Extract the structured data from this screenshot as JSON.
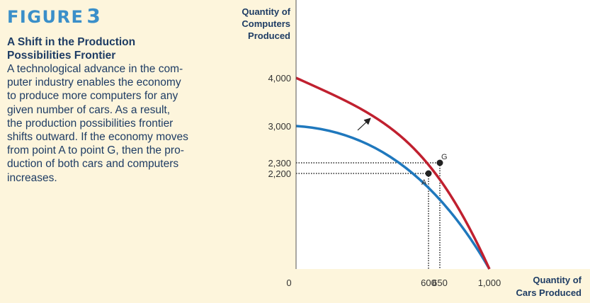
{
  "caption": {
    "figure_word": "FIGURE",
    "figure_number": "3",
    "title_lines": [
      "A Shift in the Production",
      "Possibilities Frontier"
    ],
    "body_lines": [
      "A technological advance in the com-",
      "puter industry enables the economy",
      "to produce more computers for any",
      "given number of cars. As a result,",
      "the production possibilities frontier",
      "shifts outward. If the economy moves",
      "from point A to point G, then the pro-",
      "duction of both cars and computers",
      "increases."
    ]
  },
  "chart_data": {
    "type": "line",
    "ylabel_lines": [
      "Quantity of",
      "Computers",
      "Produced"
    ],
    "xlabel_lines": [
      "Quantity of",
      "Cars Produced"
    ],
    "origin_label": "0",
    "y_ticks": [
      {
        "value": 4000,
        "label": "4,000"
      },
      {
        "value": 3000,
        "label": "3,000"
      },
      {
        "value": 2300,
        "label": "2,300"
      },
      {
        "value": 2200,
        "label": "2,200"
      }
    ],
    "x_ticks": [
      {
        "value": 600,
        "label": "600"
      },
      {
        "value": 650,
        "label": "650"
      },
      {
        "value": 1000,
        "label": "1,000"
      }
    ],
    "series": [
      {
        "key": "old",
        "color": "#1f78bd",
        "y_intercept": 3000,
        "x_intercept": 1000
      },
      {
        "key": "new",
        "color": "#c0202f",
        "y_intercept": 4000,
        "x_intercept": 1000
      }
    ],
    "points": [
      {
        "label": "A",
        "x": 600,
        "y": 2200,
        "curve": "old"
      },
      {
        "label": "G",
        "x": 650,
        "y": 2300,
        "curve": "new"
      }
    ],
    "shift_arrow": "outward"
  }
}
